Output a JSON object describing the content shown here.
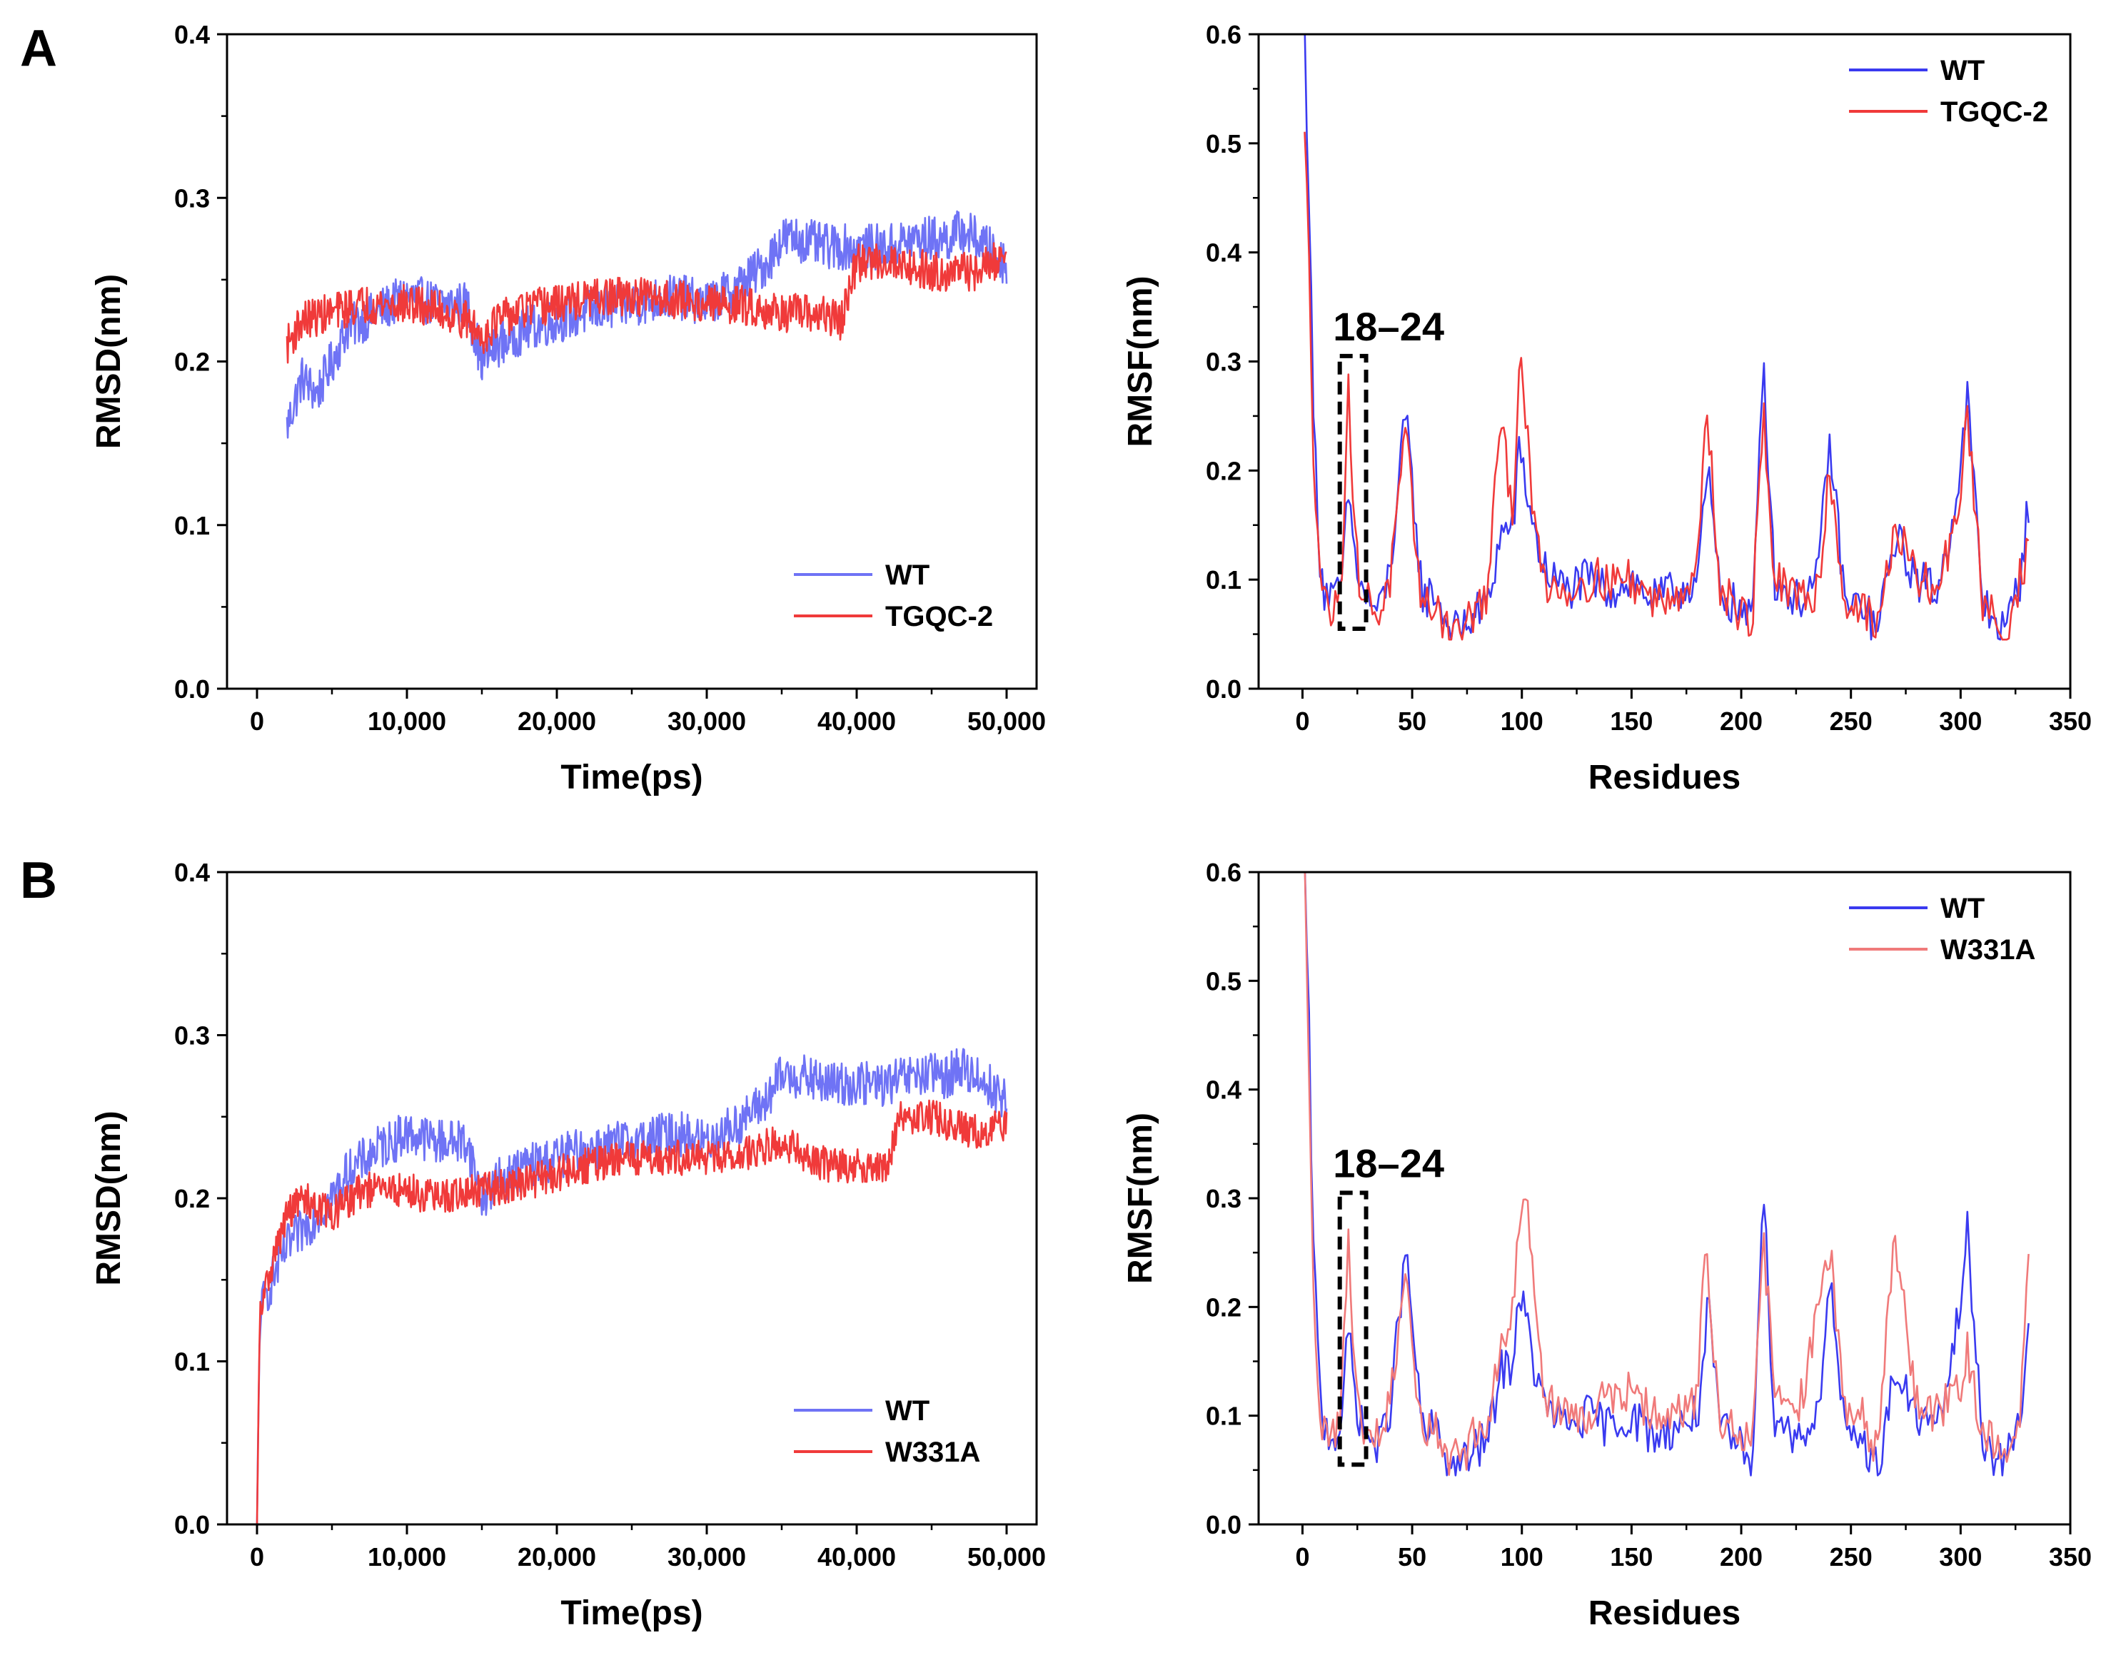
{
  "panel_labels": [
    "A",
    "B"
  ],
  "colors": {
    "wt": "#3a3af0",
    "wt_light": "#6f73f5",
    "mutant": "#f03a3a",
    "mutant_light": "#f07a7a",
    "box": "#000000"
  },
  "chart_data": [
    {
      "id": "A-rmsd",
      "panel": "A",
      "type": "line",
      "xlabel": "Time(ps)",
      "ylabel": "RMSD(nm)",
      "xlim": [
        -2000,
        52000
      ],
      "ylim": [
        0,
        0.4
      ],
      "xticks": [
        0,
        10000,
        20000,
        30000,
        40000,
        50000
      ],
      "xtick_labels": [
        "0",
        "10,000",
        "20,000",
        "30,000",
        "40,000",
        "50,000"
      ],
      "yticks": [
        0,
        0.1,
        0.2,
        0.3,
        0.4
      ],
      "ytick_labels": [
        "0.0",
        "0.1",
        "0.2",
        "0.3",
        "0.4"
      ],
      "legend_position": "bottom-right",
      "series": [
        {
          "name": "WT",
          "color": "#6f73f5",
          "x": [
            2000,
            3000,
            4000,
            5000,
            6000,
            8000,
            10000,
            12000,
            14000,
            15000,
            16000,
            18000,
            20000,
            22000,
            25000,
            28000,
            30000,
            32000,
            34000,
            35000,
            36000,
            38000,
            40000,
            42000,
            44000,
            46000,
            47000,
            48000,
            50000
          ],
          "y": [
            0.16,
            0.19,
            0.18,
            0.2,
            0.22,
            0.23,
            0.24,
            0.235,
            0.235,
            0.2,
            0.21,
            0.22,
            0.225,
            0.23,
            0.235,
            0.24,
            0.235,
            0.245,
            0.26,
            0.275,
            0.275,
            0.27,
            0.27,
            0.27,
            0.275,
            0.275,
            0.28,
            0.275,
            0.26
          ],
          "noise": 0.014
        },
        {
          "name": "TGQC-2",
          "color": "#f03a3a",
          "x": [
            2000,
            3000,
            5000,
            7000,
            10000,
            12000,
            14000,
            15000,
            16000,
            18000,
            20000,
            22000,
            25000,
            28000,
            30000,
            32000,
            35000,
            38000,
            39000,
            40000,
            42000,
            45000,
            48000,
            50000
          ],
          "y": [
            0.21,
            0.225,
            0.23,
            0.235,
            0.235,
            0.232,
            0.225,
            0.215,
            0.225,
            0.232,
            0.235,
            0.238,
            0.24,
            0.238,
            0.235,
            0.235,
            0.23,
            0.228,
            0.225,
            0.26,
            0.262,
            0.255,
            0.255,
            0.265
          ],
          "noise": 0.012
        }
      ]
    },
    {
      "id": "A-rmsf",
      "panel": "A",
      "type": "line",
      "xlabel": "Residues",
      "ylabel": "RMSF(nm)",
      "xlim": [
        -20,
        350
      ],
      "ylim": [
        0,
        0.6
      ],
      "xticks": [
        0,
        50,
        100,
        150,
        200,
        250,
        300,
        350
      ],
      "xtick_labels": [
        "0",
        "50",
        "100",
        "150",
        "200",
        "250",
        "300",
        "350"
      ],
      "yticks": [
        0,
        0.1,
        0.2,
        0.3,
        0.4,
        0.5,
        0.6
      ],
      "ytick_labels": [
        "0.0",
        "0.1",
        "0.2",
        "0.3",
        "0.4",
        "0.5",
        "0.6"
      ],
      "legend_position": "top-right",
      "annotation": {
        "text": "18–24",
        "x_range": [
          18,
          24
        ]
      },
      "series": [
        {
          "name": "WT",
          "color": "#3a3af0",
          "x": [
            1,
            3,
            5,
            8,
            10,
            15,
            18,
            21,
            24,
            27,
            30,
            35,
            40,
            47,
            55,
            60,
            68,
            75,
            85,
            90,
            96,
            99,
            105,
            110,
            120,
            130,
            140,
            150,
            160,
            170,
            180,
            185,
            190,
            200,
            205,
            210,
            215,
            225,
            235,
            240,
            248,
            255,
            262,
            270,
            280,
            290,
            300,
            303,
            310,
            320,
            327,
            331
          ],
          "y": [
            0.6,
            0.45,
            0.25,
            0.12,
            0.09,
            0.08,
            0.1,
            0.18,
            0.12,
            0.09,
            0.08,
            0.07,
            0.11,
            0.25,
            0.08,
            0.09,
            0.05,
            0.06,
            0.08,
            0.14,
            0.15,
            0.22,
            0.15,
            0.11,
            0.09,
            0.1,
            0.09,
            0.1,
            0.08,
            0.09,
            0.1,
            0.2,
            0.09,
            0.07,
            0.06,
            0.31,
            0.1,
            0.08,
            0.1,
            0.23,
            0.07,
            0.08,
            0.05,
            0.14,
            0.1,
            0.09,
            0.2,
            0.27,
            0.08,
            0.05,
            0.1,
            0.17
          ],
          "noise": 0.02
        },
        {
          "name": "TGQC-2",
          "color": "#f03a3a",
          "x": [
            1,
            3,
            5,
            8,
            10,
            15,
            18,
            21,
            24,
            27,
            30,
            35,
            40,
            47,
            55,
            60,
            68,
            75,
            85,
            90,
            96,
            99,
            105,
            110,
            120,
            130,
            140,
            150,
            160,
            170,
            180,
            184,
            190,
            200,
            205,
            210,
            215,
            225,
            235,
            240,
            248,
            255,
            262,
            270,
            280,
            290,
            300,
            303,
            310,
            320,
            327,
            331
          ],
          "y": [
            0.5,
            0.4,
            0.22,
            0.11,
            0.08,
            0.07,
            0.12,
            0.28,
            0.13,
            0.09,
            0.08,
            0.07,
            0.1,
            0.23,
            0.07,
            0.08,
            0.05,
            0.06,
            0.09,
            0.25,
            0.16,
            0.32,
            0.16,
            0.1,
            0.09,
            0.1,
            0.1,
            0.1,
            0.08,
            0.09,
            0.1,
            0.28,
            0.09,
            0.07,
            0.06,
            0.26,
            0.1,
            0.08,
            0.09,
            0.2,
            0.07,
            0.08,
            0.05,
            0.15,
            0.1,
            0.09,
            0.18,
            0.25,
            0.08,
            0.05,
            0.1,
            0.13
          ],
          "noise": 0.02
        }
      ]
    },
    {
      "id": "B-rmsd",
      "panel": "B",
      "type": "line",
      "xlabel": "Time(ps)",
      "ylabel": "RMSD(nm)",
      "xlim": [
        -2000,
        52000
      ],
      "ylim": [
        0,
        0.4
      ],
      "xticks": [
        0,
        10000,
        20000,
        30000,
        40000,
        50000
      ],
      "xtick_labels": [
        "0",
        "10,000",
        "20,000",
        "30,000",
        "40,000",
        "50,000"
      ],
      "yticks": [
        0,
        0.1,
        0.2,
        0.3,
        0.4
      ],
      "ytick_labels": [
        "0.0",
        "0.1",
        "0.2",
        "0.3",
        "0.4"
      ],
      "legend_position": "bottom-right",
      "series": [
        {
          "name": "WT",
          "color": "#6f73f5",
          "x": [
            0,
            200,
            1000,
            2000,
            3000,
            4000,
            5000,
            6000,
            8000,
            10000,
            12000,
            14000,
            15000,
            16000,
            18000,
            20000,
            22000,
            25000,
            28000,
            30000,
            32000,
            34000,
            35000,
            36000,
            38000,
            40000,
            42000,
            44000,
            46000,
            47000,
            48000,
            50000
          ],
          "y": [
            0.0,
            0.13,
            0.15,
            0.17,
            0.18,
            0.19,
            0.2,
            0.215,
            0.23,
            0.24,
            0.235,
            0.235,
            0.2,
            0.21,
            0.22,
            0.225,
            0.23,
            0.235,
            0.24,
            0.235,
            0.245,
            0.26,
            0.275,
            0.275,
            0.27,
            0.27,
            0.27,
            0.275,
            0.275,
            0.28,
            0.275,
            0.26
          ],
          "noise": 0.014
        },
        {
          "name": "W331A",
          "color": "#f03a3a",
          "x": [
            0,
            200,
            1000,
            2000,
            3000,
            5000,
            7000,
            10000,
            12000,
            15000,
            18000,
            20000,
            22000,
            25000,
            28000,
            30000,
            32000,
            35000,
            38000,
            40000,
            42000,
            43000,
            45000,
            48000,
            50000
          ],
          "y": [
            0.0,
            0.13,
            0.16,
            0.19,
            0.2,
            0.19,
            0.205,
            0.205,
            0.2,
            0.205,
            0.21,
            0.215,
            0.22,
            0.225,
            0.225,
            0.225,
            0.225,
            0.235,
            0.22,
            0.22,
            0.22,
            0.25,
            0.25,
            0.24,
            0.245
          ],
          "noise": 0.011
        }
      ]
    },
    {
      "id": "B-rmsf",
      "panel": "B",
      "type": "line",
      "xlabel": "Residues",
      "ylabel": "RMSF(nm)",
      "xlim": [
        -20,
        350
      ],
      "ylim": [
        0,
        0.6
      ],
      "xticks": [
        0,
        50,
        100,
        150,
        200,
        250,
        300,
        350
      ],
      "xtick_labels": [
        "0",
        "50",
        "100",
        "150",
        "200",
        "250",
        "300",
        "350"
      ],
      "yticks": [
        0,
        0.1,
        0.2,
        0.3,
        0.4,
        0.5,
        0.6
      ],
      "ytick_labels": [
        "0.0",
        "0.1",
        "0.2",
        "0.3",
        "0.4",
        "0.5",
        "0.6"
      ],
      "legend_position": "top-right",
      "annotation": {
        "text": "18–24",
        "x_range": [
          18,
          24
        ]
      },
      "series": [
        {
          "name": "WT",
          "color": "#3a3af0",
          "x": [
            1,
            3,
            5,
            8,
            10,
            15,
            18,
            21,
            24,
            27,
            30,
            35,
            40,
            47,
            55,
            60,
            68,
            75,
            85,
            90,
            96,
            99,
            105,
            110,
            120,
            130,
            140,
            150,
            160,
            170,
            180,
            185,
            190,
            200,
            205,
            210,
            215,
            225,
            235,
            240,
            248,
            255,
            262,
            270,
            280,
            290,
            300,
            303,
            310,
            320,
            327,
            331
          ],
          "y": [
            0.6,
            0.45,
            0.25,
            0.12,
            0.09,
            0.08,
            0.1,
            0.18,
            0.12,
            0.09,
            0.08,
            0.07,
            0.11,
            0.25,
            0.08,
            0.09,
            0.05,
            0.06,
            0.08,
            0.14,
            0.15,
            0.22,
            0.15,
            0.11,
            0.09,
            0.1,
            0.09,
            0.1,
            0.08,
            0.09,
            0.1,
            0.2,
            0.09,
            0.07,
            0.06,
            0.31,
            0.1,
            0.08,
            0.1,
            0.23,
            0.07,
            0.08,
            0.05,
            0.14,
            0.1,
            0.09,
            0.2,
            0.27,
            0.08,
            0.05,
            0.1,
            0.17
          ],
          "noise": 0.02
        },
        {
          "name": "W331A",
          "color": "#f07a7a",
          "x": [
            1,
            3,
            5,
            8,
            10,
            15,
            18,
            21,
            24,
            27,
            30,
            35,
            40,
            47,
            55,
            60,
            68,
            75,
            85,
            90,
            96,
            100,
            103,
            110,
            120,
            130,
            140,
            150,
            160,
            170,
            180,
            184,
            190,
            200,
            205,
            210,
            215,
            225,
            235,
            240,
            248,
            255,
            262,
            270,
            280,
            290,
            300,
            303,
            310,
            320,
            327,
            331
          ],
          "y": [
            0.6,
            0.42,
            0.22,
            0.11,
            0.08,
            0.08,
            0.12,
            0.26,
            0.13,
            0.09,
            0.08,
            0.08,
            0.11,
            0.22,
            0.08,
            0.09,
            0.06,
            0.07,
            0.1,
            0.16,
            0.2,
            0.3,
            0.29,
            0.12,
            0.1,
            0.1,
            0.12,
            0.12,
            0.1,
            0.1,
            0.12,
            0.26,
            0.1,
            0.08,
            0.07,
            0.27,
            0.12,
            0.09,
            0.2,
            0.26,
            0.09,
            0.1,
            0.07,
            0.26,
            0.11,
            0.1,
            0.13,
            0.16,
            0.08,
            0.07,
            0.1,
            0.25
          ],
          "noise": 0.02
        }
      ]
    }
  ]
}
